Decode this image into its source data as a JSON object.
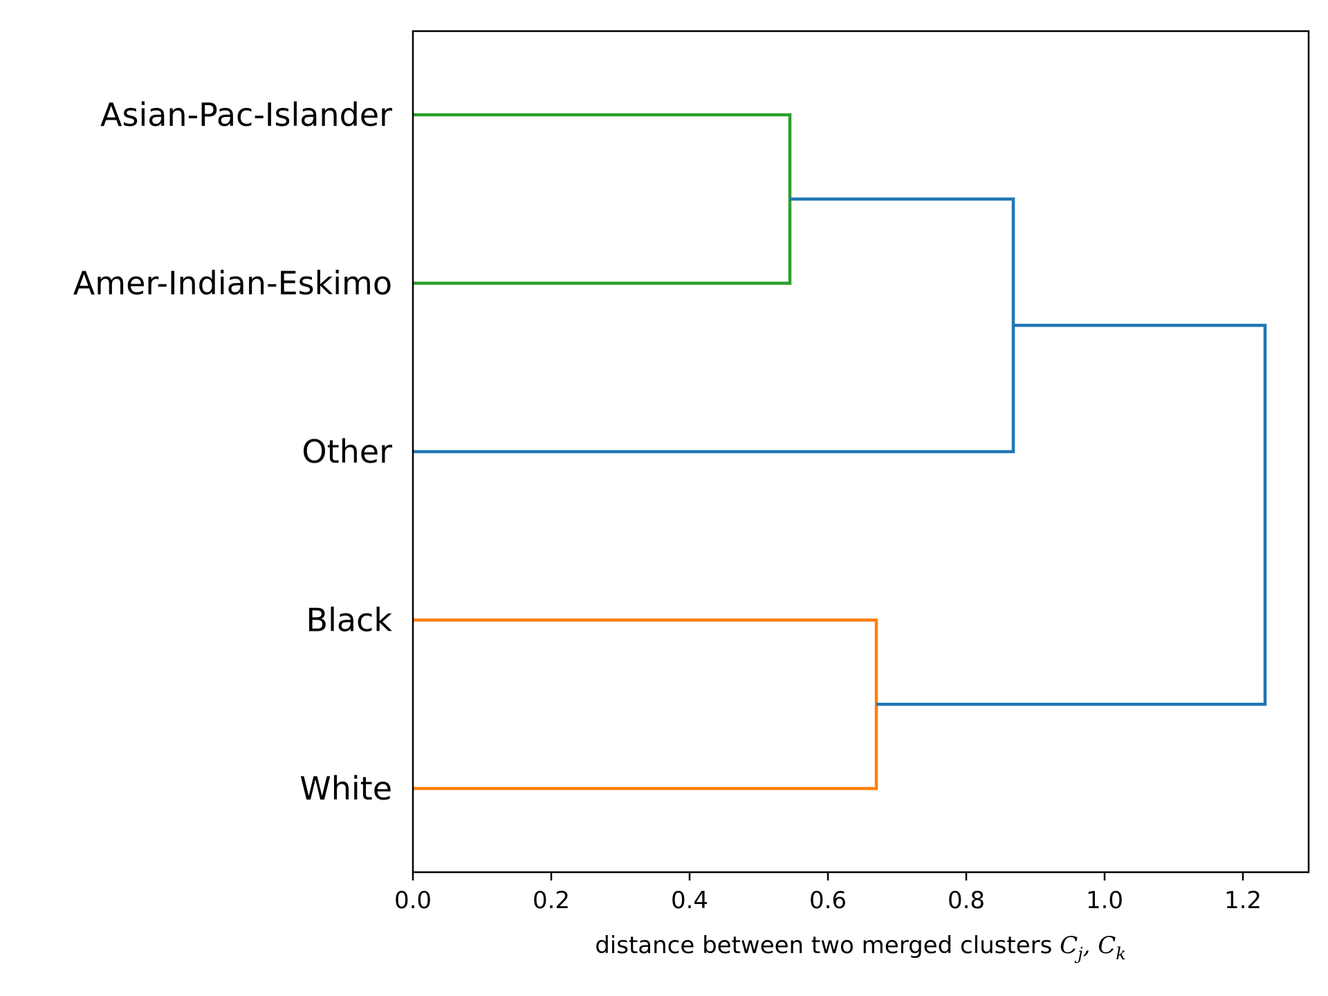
{
  "chart_data": {
    "type": "dendrogram",
    "orientation": "horizontal",
    "xlabel": {
      "text": "distance between two merged clusters ",
      "math": [
        {
          "base": "C",
          "sub": "j"
        },
        {
          "sep": ", "
        },
        {
          "base": "C",
          "sub": "k"
        }
      ]
    },
    "xlim": [
      0.0,
      1.295
    ],
    "xticks": [
      "0.0",
      "0.2",
      "0.4",
      "0.6",
      "0.8",
      "1.0",
      "1.2"
    ],
    "xtick_values": [
      0.0,
      0.2,
      0.4,
      0.6,
      0.8,
      1.0,
      1.2
    ],
    "leaves": [
      "Asian-Pac-Islander",
      "Amer-Indian-Eskimo",
      "Other",
      "Black",
      "White"
    ],
    "merges": [
      {
        "left": "Asian-Pac-Islander",
        "right": "Amer-Indian-Eskimo",
        "distance": 0.545,
        "color": "#2ca02c"
      },
      {
        "left": "Black",
        "right": "White",
        "distance": 0.67,
        "color": "#ff7f0e"
      },
      {
        "left": "merge-1",
        "right": "Other",
        "distance": 0.868,
        "color": "#1f77b4"
      },
      {
        "left": "merge-3",
        "right": "merge-2",
        "distance": 1.232,
        "color": "#1f77b4"
      }
    ],
    "grid": false,
    "legend": "none"
  }
}
